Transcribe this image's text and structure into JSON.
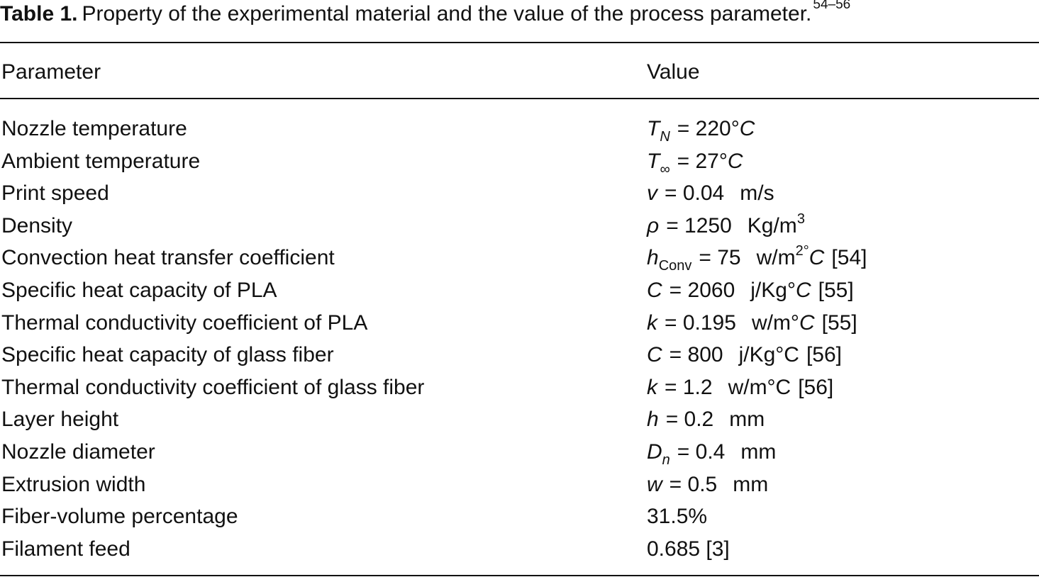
{
  "caption": {
    "label": "Table 1.",
    "text": "Property of the experimental material and the value of the process parameter.",
    "refs": "54–56"
  },
  "table": {
    "header": [
      "Parameter",
      "Value"
    ],
    "rows": [
      {
        "parameter": "Nozzle temperature",
        "value": [
          "T",
          "N",
          "= 220°",
          "C"
        ]
      },
      {
        "parameter": "Ambient temperature",
        "value": [
          "T",
          "∞",
          "= 27°",
          "C"
        ]
      },
      {
        "parameter": "Print speed",
        "value": [
          "v",
          "= 0.04",
          "m/s"
        ]
      },
      {
        "parameter": "Density",
        "value": [
          "ρ",
          "= 1250",
          "Kg/m",
          "3"
        ]
      },
      {
        "parameter": "Convection heat transfer coefficient",
        "value": [
          "h",
          "Conv",
          "= 75",
          "w/m",
          "2°",
          "C",
          "[54]"
        ]
      },
      {
        "parameter": "Specific heat capacity of PLA",
        "value": [
          "C",
          "= 2060",
          "j/Kg°",
          "C",
          "[55]"
        ]
      },
      {
        "parameter": "Thermal conductivity coefficient of PLA",
        "value": [
          "k",
          "= 0.195",
          "w/m°",
          "C",
          "[55]"
        ]
      },
      {
        "parameter": "Specific heat capacity of glass fiber",
        "value": [
          "C",
          "= 800",
          "j/Kg°C",
          "[56]"
        ]
      },
      {
        "parameter": "Thermal conductivity coefficient of glass fiber",
        "value": [
          "k",
          "= 1.2",
          "w/m°C",
          "[56]"
        ]
      },
      {
        "parameter": "Layer height",
        "value": [
          "h",
          "= 0.2",
          "mm"
        ]
      },
      {
        "parameter": "Nozzle diameter",
        "value": [
          "D",
          "n",
          "= 0.4",
          "mm"
        ]
      },
      {
        "parameter": "Extrusion width",
        "value": [
          "w",
          "= 0.5",
          "mm"
        ]
      },
      {
        "parameter": "Fiber-volume percentage",
        "value": [
          "31.5%"
        ]
      },
      {
        "parameter": "Filament feed",
        "value": [
          "0.685 [3]"
        ]
      }
    ]
  }
}
